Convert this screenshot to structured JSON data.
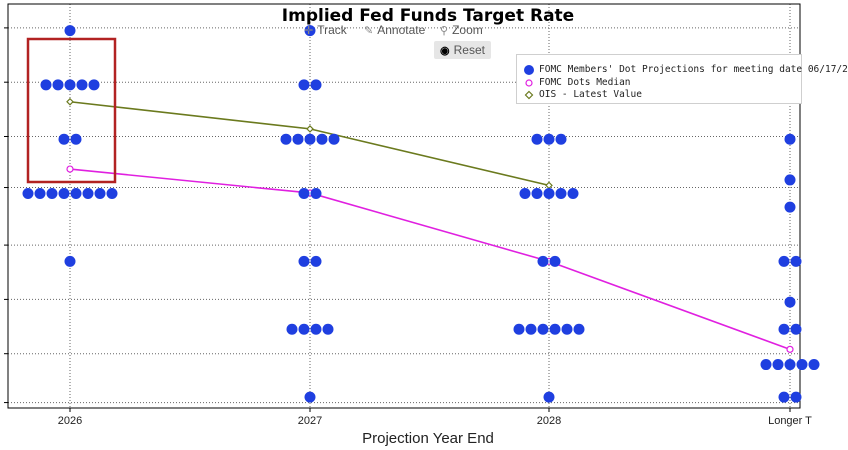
{
  "chart_data": {
    "type": "scatter",
    "title": "Implied Fed Funds Target Rate",
    "xlabel": "Projection Year End",
    "categories": [
      "2026",
      "2027",
      "2028",
      "Longer T"
    ],
    "dots": {
      "name": "FOMC Members' Dot Projections for meeting date 06/17/2",
      "color": "#1f3fe0",
      "points": [
        {
          "x": "2026",
          "y": 4.375,
          "count": 1
        },
        {
          "x": "2026",
          "y": 3.875,
          "count": 5
        },
        {
          "x": "2026",
          "y": 3.375,
          "count": 2
        },
        {
          "x": "2026",
          "y": 2.875,
          "count": 8
        },
        {
          "x": "2026",
          "y": 2.25,
          "count": 1
        },
        {
          "x": "2027",
          "y": 4.375,
          "count": 1
        },
        {
          "x": "2027",
          "y": 3.875,
          "count": 2
        },
        {
          "x": "2027",
          "y": 3.375,
          "count": 5
        },
        {
          "x": "2027",
          "y": 2.875,
          "count": 2
        },
        {
          "x": "2027",
          "y": 2.25,
          "count": 2
        },
        {
          "x": "2027",
          "y": 1.625,
          "count": 4
        },
        {
          "x": "2027",
          "y": 1.0,
          "count": 1
        },
        {
          "x": "2028",
          "y": 3.375,
          "count": 3
        },
        {
          "x": "2028",
          "y": 2.875,
          "count": 5
        },
        {
          "x": "2028",
          "y": 2.25,
          "count": 2
        },
        {
          "x": "2028",
          "y": 1.625,
          "count": 6
        },
        {
          "x": "2028",
          "y": 1.0,
          "count": 1
        },
        {
          "x": "Longer T",
          "y": 3.375,
          "count": 1
        },
        {
          "x": "Longer T",
          "y": 3.0,
          "count": 1
        },
        {
          "x": "Longer T",
          "y": 2.75,
          "count": 1
        },
        {
          "x": "Longer T",
          "y": 2.25,
          "count": 2
        },
        {
          "x": "Longer T",
          "y": 1.875,
          "count": 1
        },
        {
          "x": "Longer T",
          "y": 1.625,
          "count": 2
        },
        {
          "x": "Longer T",
          "y": 1.3,
          "count": 5
        },
        {
          "x": "Longer T",
          "y": 1.0,
          "count": 2
        }
      ]
    },
    "series": [
      {
        "name": "FOMC Dots Median",
        "color": "#e020e0",
        "marker": "circle",
        "x": [
          "2026",
          "2027",
          "2028",
          "Longer T"
        ],
        "y": [
          3.1,
          2.88,
          2.25,
          1.44
        ]
      },
      {
        "name": "OIS - Latest Value",
        "color": "#6b7a1e",
        "marker": "diamond",
        "x": [
          "2026",
          "2027",
          "2028"
        ],
        "y": [
          3.72,
          3.47,
          2.95
        ]
      }
    ],
    "ylim": [
      0.9,
      4.62
    ],
    "grid": true,
    "legend_position": "top-right"
  },
  "toolbar": {
    "track_label": "Track",
    "track_icon": "crosshair-icon",
    "annotate_label": "Annotate",
    "annotate_icon": "pencil-icon",
    "zoom_label": "Zoom",
    "zoom_icon": "magnifier-icon",
    "reset_label": "Reset",
    "reset_icon": "ring-icon"
  },
  "highlight": {
    "color": "#b22222"
  }
}
